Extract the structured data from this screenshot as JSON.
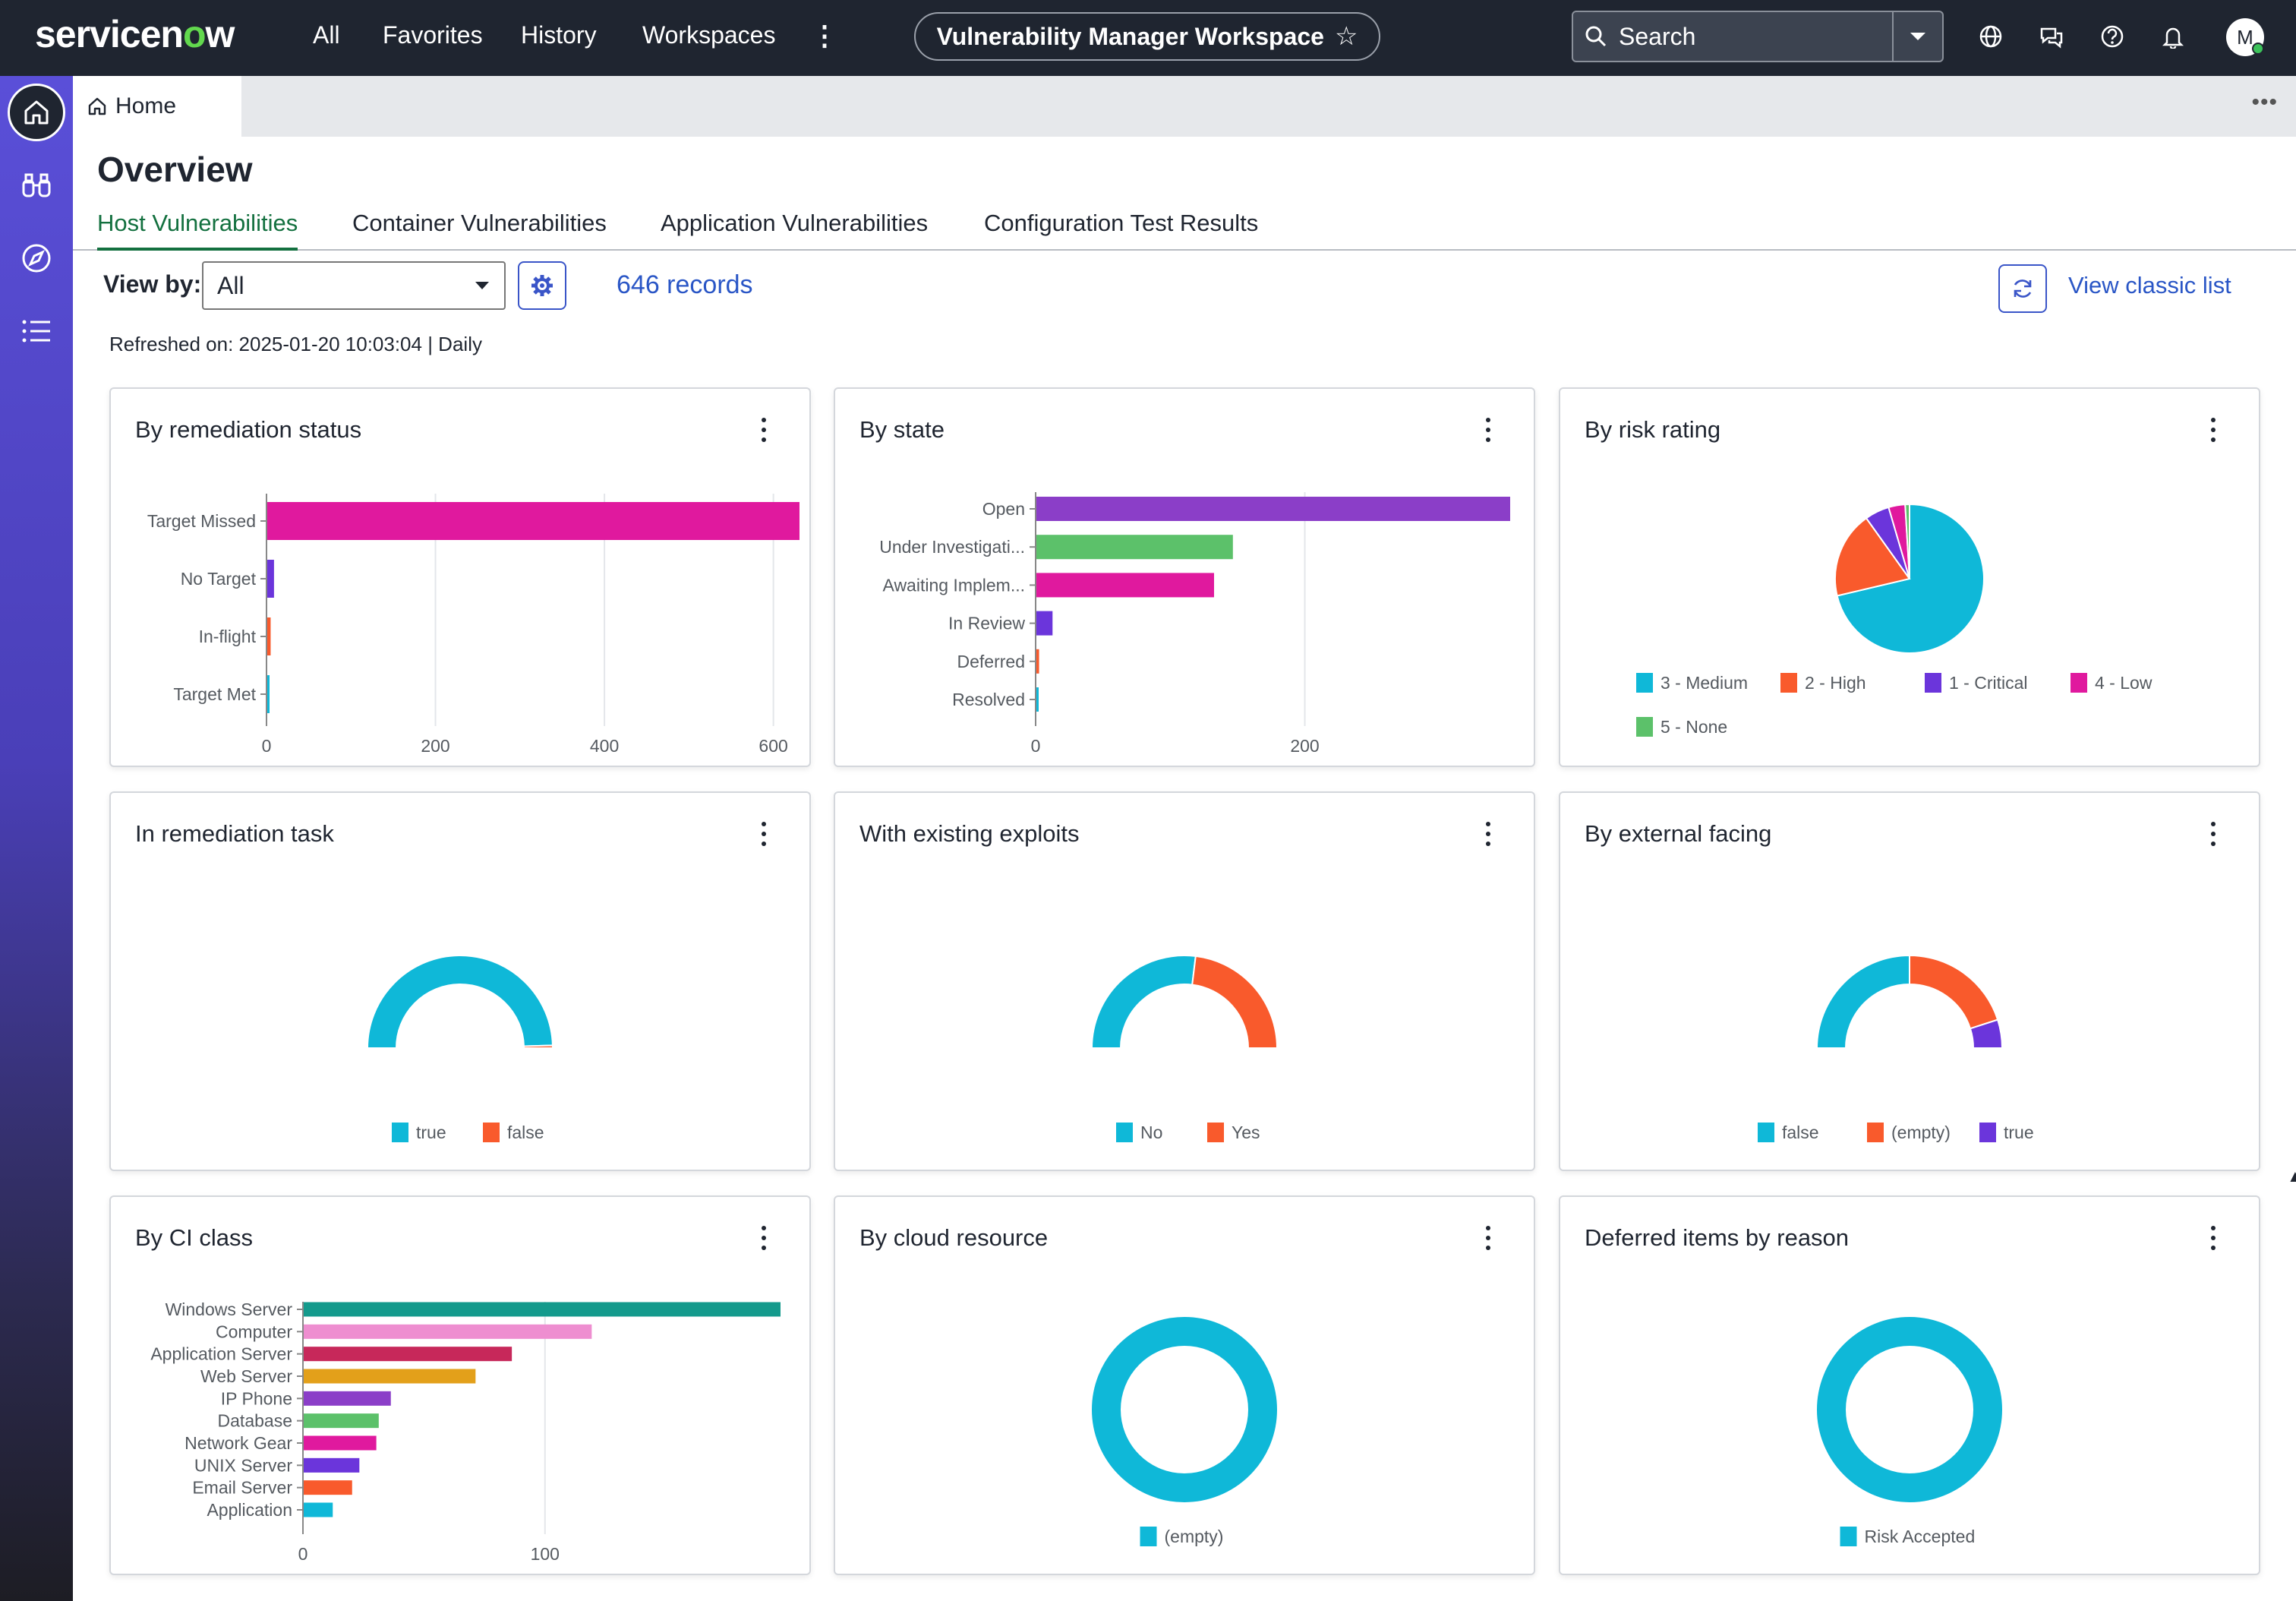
{
  "topbar": {
    "logo_text": "servicen",
    "logo_o": "o",
    "logo_end": "w",
    "nav": [
      "All",
      "Favorites",
      "History",
      "Workspaces"
    ],
    "workspace_title": "Vulnerability Manager Workspace",
    "search_label": "Search",
    "avatar_initial": "M",
    "icons": [
      "globe-icon",
      "chat-icon",
      "help-icon",
      "bell-icon"
    ]
  },
  "rail": {
    "items": [
      "home-icon",
      "binoculars-icon",
      "compass-icon",
      "list-icon"
    ]
  },
  "tabstrip": {
    "home_label": "Home"
  },
  "page": {
    "title": "Overview",
    "subtabs": [
      "Host Vulnerabilities",
      "Container Vulnerabilities",
      "Application Vulnerabilities",
      "Configuration Test Results"
    ],
    "active_subtab": "Host Vulnerabilities",
    "viewby_label": "View by:",
    "viewby_value": "All",
    "records": "646 records",
    "classic_link": "View classic list",
    "refreshed": "Refreshed on: 2025-01-20 10:03:04 | Daily"
  },
  "colors": {
    "cyan": "#0fb8d8",
    "orange": "#f95a2c",
    "purple": "#6b35db",
    "magenta": "#e0199e",
    "green": "#5cc16a",
    "violet": "#8b3ec8",
    "teal": "#149a8c",
    "pink": "#ee8ed0",
    "crimson": "#c7285a",
    "amber": "#e3a01a",
    "brand_green": "#62d84e",
    "link": "#2a56c6"
  },
  "cards": {
    "remediation_status": {
      "title": "By remediation status"
    },
    "state": {
      "title": "By state"
    },
    "risk_rating": {
      "title": "By risk rating"
    },
    "remediation_task": {
      "title": "In remediation task"
    },
    "existing_exploits": {
      "title": "With existing exploits"
    },
    "external_facing": {
      "title": "By external facing"
    },
    "ci_class": {
      "title": "By CI class"
    },
    "cloud_resource": {
      "title": "By cloud resource"
    },
    "deferred_reason": {
      "title": "Deferred items by reason"
    }
  },
  "chart_data": [
    {
      "id": "remediation_status",
      "type": "bar",
      "orientation": "horizontal",
      "title": "By remediation status",
      "categories": [
        "Target Missed",
        "No Target",
        "In-flight",
        "Target Met"
      ],
      "values": [
        630,
        8,
        4,
        1
      ],
      "xlim": [
        0,
        630
      ],
      "xticks": [
        0,
        200,
        400,
        600
      ],
      "colors": [
        "#e0199e",
        "#6b35db",
        "#f95a2c",
        "#0fb8d8"
      ],
      "grid": true
    },
    {
      "id": "state",
      "type": "bar",
      "orientation": "horizontal",
      "title": "By state",
      "categories": [
        "Open",
        "Under Investigati...",
        "Awaiting Implem...",
        "In Review",
        "Deferred",
        "Resolved"
      ],
      "values": [
        352,
        146,
        132,
        12,
        2,
        1
      ],
      "xlim": [
        0,
        352
      ],
      "xticks": [
        0,
        200
      ],
      "colors": [
        "#8b3ec8",
        "#5cc16a",
        "#e0199e",
        "#6b35db",
        "#f95a2c",
        "#0fb8d8"
      ],
      "grid": true
    },
    {
      "id": "risk_rating",
      "type": "pie",
      "title": "By risk rating",
      "labels": [
        "3 - Medium",
        "2 - High",
        "1 - Critical",
        "4 - Low",
        "5 - None"
      ],
      "values": [
        455,
        120,
        34,
        23,
        6
      ],
      "colors": [
        "#0fb8d8",
        "#f95a2c",
        "#6b35db",
        "#e0199e",
        "#5cc16a"
      ],
      "legend": "bottom"
    },
    {
      "id": "remediation_task",
      "type": "semi-donut",
      "title": "In remediation task",
      "labels": [
        "true",
        "false"
      ],
      "values": [
        640,
        6
      ],
      "colors": [
        "#0fb8d8",
        "#f95a2c"
      ],
      "legend": "bottom"
    },
    {
      "id": "existing_exploits",
      "type": "semi-donut",
      "title": "With existing exploits",
      "labels": [
        "No",
        "Yes"
      ],
      "values": [
        348,
        298
      ],
      "colors": [
        "#0fb8d8",
        "#f95a2c"
      ],
      "legend": "bottom"
    },
    {
      "id": "external_facing",
      "type": "semi-donut",
      "title": "By external facing",
      "labels": [
        "false",
        "(empty)",
        "true"
      ],
      "values": [
        323,
        259,
        64
      ],
      "colors": [
        "#0fb8d8",
        "#f95a2c",
        "#6b35db"
      ],
      "legend": "bottom"
    },
    {
      "id": "ci_class",
      "type": "bar",
      "orientation": "horizontal",
      "title": "By CI class",
      "categories": [
        "Windows Server",
        "Computer",
        "Application Server",
        "Web Server",
        "IP Phone",
        "Database",
        "Network Gear",
        "UNIX Server",
        "Email Server",
        "Application"
      ],
      "values": [
        197,
        119,
        86,
        71,
        36,
        31,
        30,
        23,
        20,
        12
      ],
      "xlim": [
        0,
        197
      ],
      "xticks": [
        0,
        100
      ],
      "colors": [
        "#149a8c",
        "#ee8ed0",
        "#c7285a",
        "#e3a01a",
        "#8b3ec8",
        "#5cc16a",
        "#e0199e",
        "#6b35db",
        "#f95a2c",
        "#0fb8d8"
      ],
      "grid": true
    },
    {
      "id": "cloud_resource",
      "type": "donut",
      "title": "By cloud resource",
      "labels": [
        "(empty)"
      ],
      "values": [
        646
      ],
      "colors": [
        "#0fb8d8"
      ],
      "legend": "bottom"
    },
    {
      "id": "deferred_reason",
      "type": "donut",
      "title": "Deferred items by reason",
      "labels": [
        "Risk Accepted"
      ],
      "values": [
        1
      ],
      "colors": [
        "#0fb8d8"
      ],
      "legend": "bottom"
    }
  ]
}
